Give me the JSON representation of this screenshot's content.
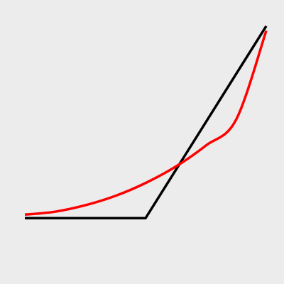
{
  "background": "#ececec",
  "chart_data": {
    "type": "line",
    "title": "",
    "xlabel": "",
    "ylabel": "",
    "grid": false,
    "legend": "none",
    "xlim": [
      -2,
      2
    ],
    "ylim": [
      -2,
      2
    ],
    "series": [
      {
        "color": "#000000",
        "x": [
          -2,
          0,
          2
        ],
        "y": [
          -1.3,
          -1.3,
          1.98
        ]
      },
      {
        "color": "#ff0000",
        "x": [
          -2,
          -1.5,
          -1,
          -0.5,
          0,
          0.5,
          1,
          1.5,
          2
        ],
        "y": [
          -1.24,
          -1.19,
          -1.08,
          -0.92,
          -0.7,
          -0.42,
          -0.06,
          0.38,
          1.9
        ]
      }
    ]
  }
}
